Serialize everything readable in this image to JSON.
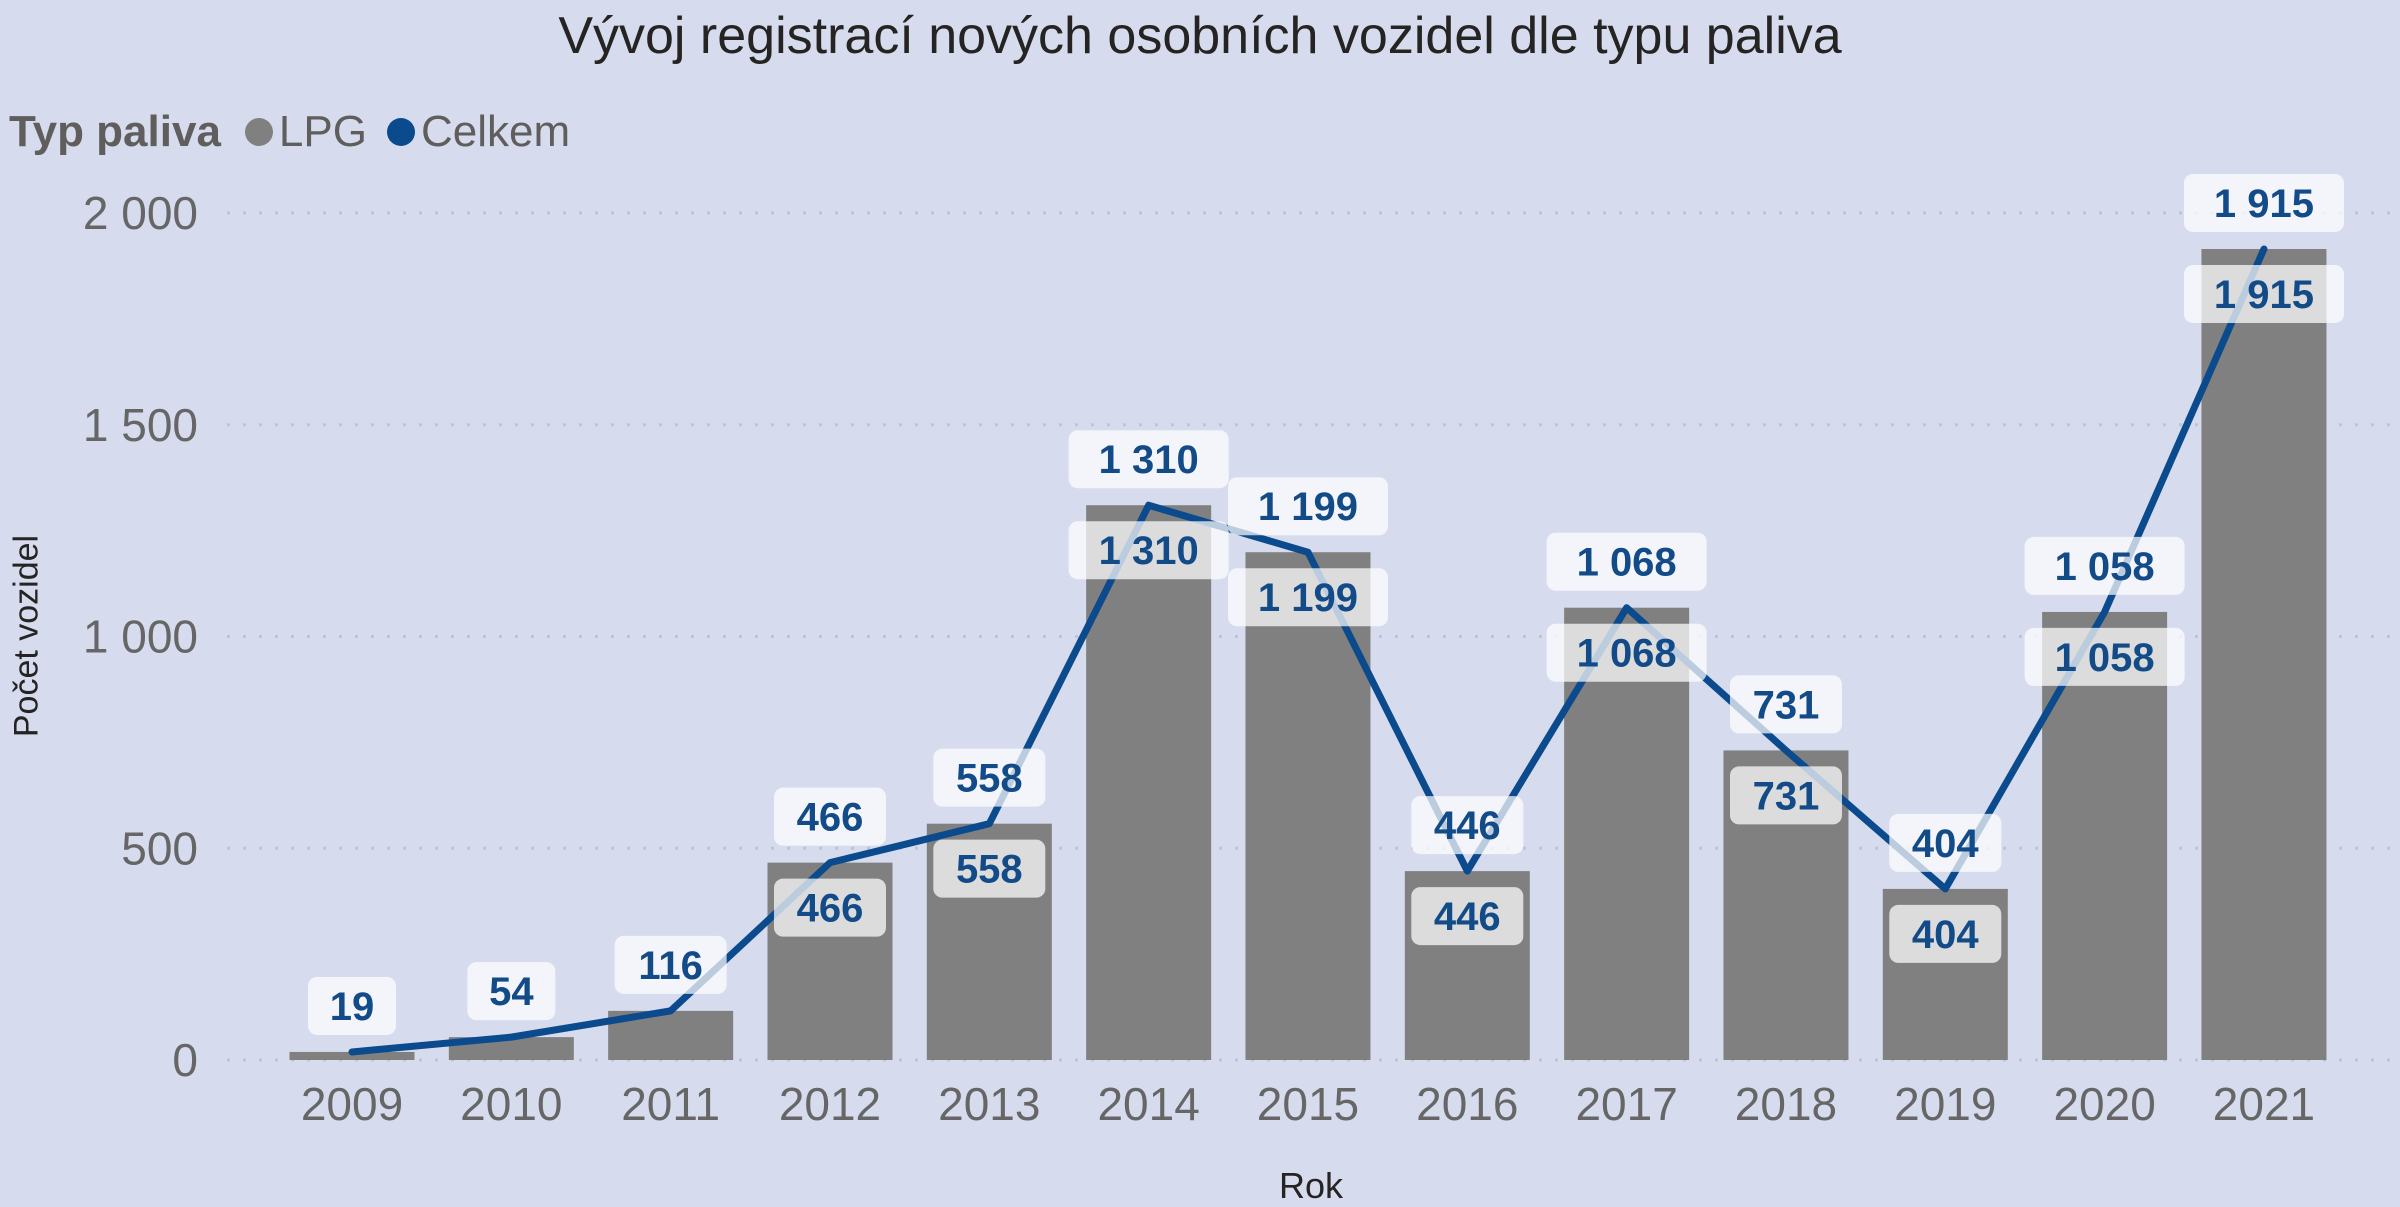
{
  "title": "Vývoj registrací nových osobních vozidel dle typu paliva",
  "legend": {
    "title": "Typ paliva",
    "items": [
      {
        "label": "LPG",
        "color": "#808080"
      },
      {
        "label": "Celkem",
        "color": "#0B4A8C"
      }
    ]
  },
  "axes": {
    "y_title": "Počet vozidel",
    "x_title": "Rok",
    "y_ticks": [
      {
        "value": 0,
        "label": "0"
      },
      {
        "value": 500,
        "label": "500"
      },
      {
        "value": 1000,
        "label": "1 000"
      },
      {
        "value": 1500,
        "label": "1 500"
      },
      {
        "value": 2000,
        "label": "2 000"
      }
    ]
  },
  "colors": {
    "background": "#D6DCEE",
    "bar": "#808080",
    "line": "#0B4A8C",
    "label_text": "#124B87",
    "gridline": "#BFC4D4"
  },
  "chart_data": {
    "type": "bar+line",
    "title": "Vývoj registrací nových osobních vozidel dle typu paliva",
    "xlabel": "Rok",
    "ylabel": "Počet vozidel",
    "ylim": [
      0,
      2000
    ],
    "grid": true,
    "legend_position": "top-left",
    "categories": [
      "2009",
      "2010",
      "2011",
      "2012",
      "2013",
      "2014",
      "2015",
      "2016",
      "2017",
      "2018",
      "2019",
      "2020",
      "2021"
    ],
    "series": [
      {
        "name": "LPG",
        "type": "bar",
        "values": [
          19,
          54,
          116,
          466,
          558,
          1310,
          1199,
          446,
          1068,
          731,
          404,
          1058,
          1915
        ],
        "labels": [
          "",
          "",
          "",
          "466",
          "558",
          "1 310",
          "1 199",
          "446",
          "1 068",
          "731",
          "404",
          "1 058",
          "1 915"
        ]
      },
      {
        "name": "Celkem",
        "type": "line",
        "values": [
          19,
          54,
          116,
          466,
          558,
          1310,
          1199,
          446,
          1068,
          731,
          404,
          1058,
          1915
        ],
        "labels": [
          "19",
          "54",
          "116",
          "466",
          "558",
          "1 310",
          "1 199",
          "446",
          "1 068",
          "731",
          "404",
          "1 058",
          "1 915"
        ]
      }
    ]
  }
}
